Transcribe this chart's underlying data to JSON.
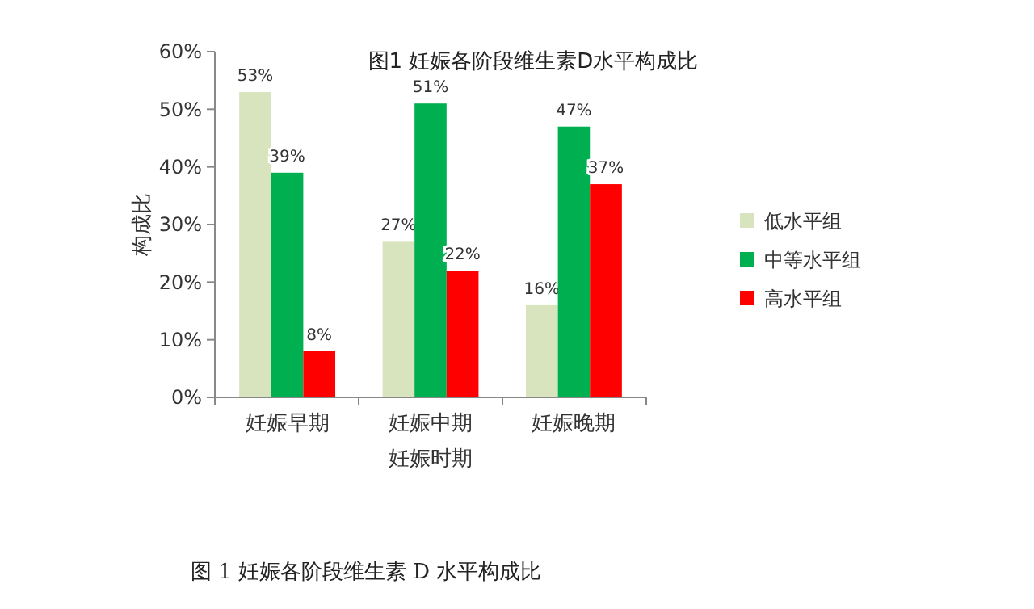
{
  "chart_data": {
    "type": "bar",
    "title": "图1  妊娠各阶段维生素D水平构成比",
    "xlabel": "妊娠时期",
    "ylabel": "构成比",
    "categories": [
      "妊娠早期",
      "妊娠中期",
      "妊娠晚期"
    ],
    "series": [
      {
        "name": "低水平组",
        "color": "#d7e4bd",
        "values": [
          53,
          27,
          16
        ],
        "value_labels": [
          "53%",
          "27%",
          "16%"
        ]
      },
      {
        "name": "中等水平组",
        "color": "#00b050",
        "values": [
          39,
          51,
          47
        ],
        "value_labels": [
          "39%",
          "51%",
          "47%"
        ]
      },
      {
        "name": "高水平组",
        "color": "#ff0000",
        "values": [
          8,
          22,
          37
        ],
        "value_labels": [
          "8%",
          "22%",
          "37%"
        ]
      }
    ],
    "ylim": [
      0,
      60
    ],
    "yticks": [
      {
        "value": 0,
        "label": "0%"
      },
      {
        "value": 10,
        "label": "10%"
      },
      {
        "value": 20,
        "label": "20%"
      },
      {
        "value": 30,
        "label": "30%"
      },
      {
        "value": 40,
        "label": "40%"
      },
      {
        "value": 50,
        "label": "50%"
      },
      {
        "value": 60,
        "label": "60%"
      }
    ],
    "legend": "right",
    "annotations": [
      "图 1 妊娠各阶段维生素 D 水平构成比"
    ]
  }
}
